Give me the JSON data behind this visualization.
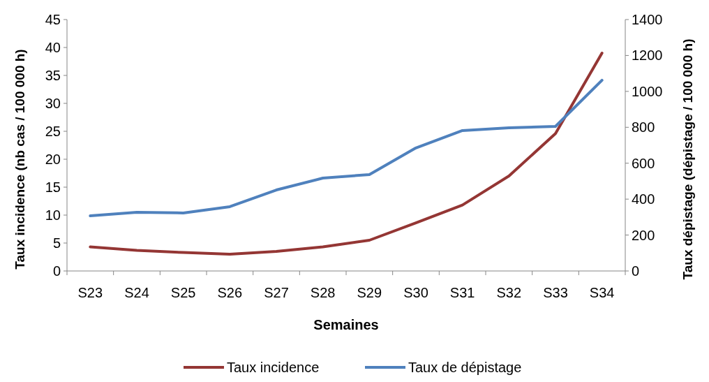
{
  "chart_data": {
    "type": "line",
    "xlabel": "Semaines",
    "ylabel": "Taux incidence (nb cas / 100 000 h)",
    "y2label": "Taux dépistage (dépistage / 100 000 h)",
    "categories": [
      "S23",
      "S24",
      "S25",
      "S26",
      "S27",
      "S28",
      "S29",
      "S30",
      "S31",
      "S32",
      "S33",
      "S34"
    ],
    "series": [
      {
        "name": "Taux incidence",
        "color": "#943634",
        "values": [
          4.3,
          3.7,
          3.3,
          3.0,
          3.5,
          4.3,
          5.5,
          8.6,
          11.8,
          17,
          24.6,
          39
        ]
      },
      {
        "name": "Taux de dépistage",
        "color": "#4f81bd",
        "axis": "y2",
        "values": [
          307,
          327,
          323,
          358,
          451,
          517,
          537,
          685,
          782,
          797,
          805,
          1062
        ]
      }
    ],
    "ylim": [
      0,
      45
    ],
    "yticks": [
      0,
      5,
      10,
      15,
      20,
      25,
      30,
      35,
      40,
      45
    ],
    "y2lim": [
      0,
      1400
    ],
    "y2ticks": [
      0,
      200,
      400,
      600,
      800,
      1000,
      1200,
      1400
    ],
    "legend": "bottom",
    "grid": false,
    "marker": "none",
    "line_style": "solid"
  }
}
